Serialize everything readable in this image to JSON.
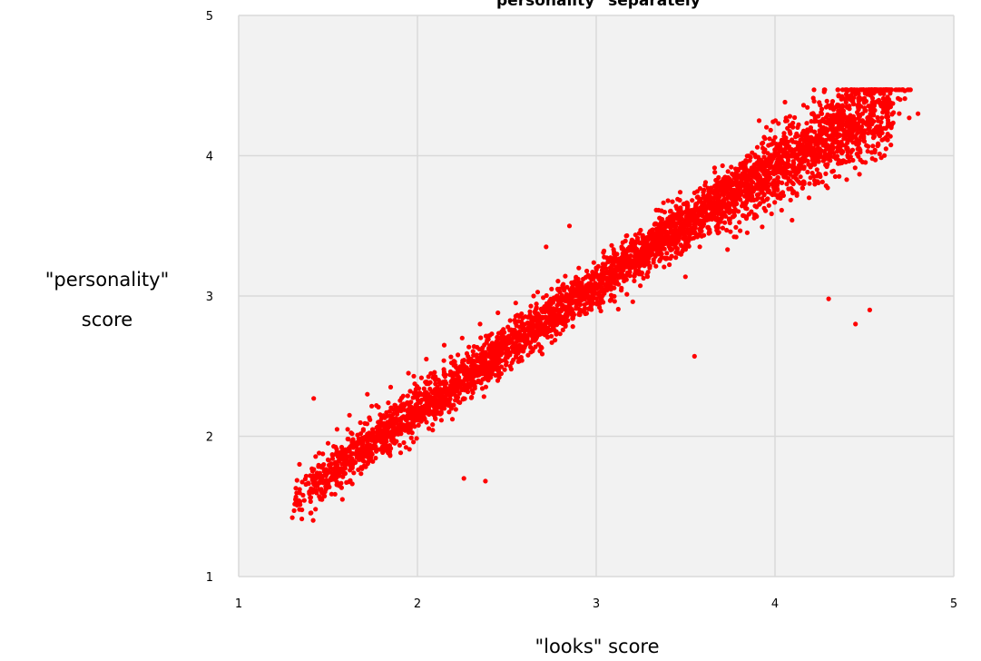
{
  "chart_data": {
    "type": "scatter",
    "title": "\"personality\" separately",
    "xlabel": "\"looks\" score",
    "ylabel": [
      "\"personality\"",
      "score"
    ],
    "xlim": [
      1,
      5
    ],
    "ylim": [
      1,
      5
    ],
    "xticks": [
      "1",
      "2",
      "3",
      "4",
      "5"
    ],
    "yticks": [
      "1",
      "2",
      "3",
      "4",
      "5"
    ],
    "grid": true,
    "legend": "none",
    "plot_background": "#f2f2f2",
    "grid_color": "#d9d9d9",
    "point_color": "#ff0000",
    "series": [
      {
        "points_summary": "dense cloud of several thousand points along a rising diagonal band from about (1.3, 1.45) to about (4.8, 4.3)",
        "points": [
          [
            1.3,
            1.42
          ],
          [
            1.31,
            1.47
          ],
          [
            1.32,
            1.63
          ],
          [
            1.34,
            1.8
          ],
          [
            1.36,
            1.58
          ],
          [
            1.4,
            1.72
          ],
          [
            1.42,
            2.27
          ],
          [
            1.43,
            1.48
          ],
          [
            1.45,
            1.88
          ],
          [
            1.5,
            1.95
          ],
          [
            1.55,
            2.05
          ],
          [
            1.58,
            1.55
          ],
          [
            1.62,
            2.15
          ],
          [
            1.68,
            1.95
          ],
          [
            1.72,
            2.3
          ],
          [
            1.78,
            2.1
          ],
          [
            1.85,
            2.35
          ],
          [
            1.9,
            2.2
          ],
          [
            1.95,
            2.45
          ],
          [
            2.0,
            2.3
          ],
          [
            2.05,
            2.55
          ],
          [
            2.1,
            2.4
          ],
          [
            2.15,
            2.65
          ],
          [
            2.2,
            2.45
          ],
          [
            2.25,
            2.7
          ],
          [
            2.26,
            1.7
          ],
          [
            2.3,
            2.55
          ],
          [
            2.35,
            2.8
          ],
          [
            2.38,
            1.68
          ],
          [
            2.4,
            2.62
          ],
          [
            2.45,
            2.88
          ],
          [
            2.5,
            2.7
          ],
          [
            2.55,
            2.95
          ],
          [
            2.6,
            2.75
          ],
          [
            2.65,
            3.0
          ],
          [
            2.7,
            2.85
          ],
          [
            2.72,
            3.35
          ],
          [
            2.75,
            3.05
          ],
          [
            2.8,
            2.9
          ],
          [
            2.85,
            3.5
          ],
          [
            2.9,
            3.1
          ],
          [
            2.95,
            2.95
          ],
          [
            3.0,
            3.2
          ],
          [
            3.05,
            3.05
          ],
          [
            3.1,
            3.3
          ],
          [
            3.15,
            3.15
          ],
          [
            3.2,
            3.4
          ],
          [
            3.25,
            3.25
          ],
          [
            3.3,
            3.45
          ],
          [
            3.35,
            3.3
          ],
          [
            3.4,
            3.55
          ],
          [
            3.45,
            3.4
          ],
          [
            3.5,
            3.6
          ],
          [
            3.55,
            2.57
          ],
          [
            3.55,
            3.45
          ],
          [
            3.6,
            3.7
          ],
          [
            3.65,
            3.55
          ],
          [
            3.7,
            3.75
          ],
          [
            3.75,
            3.6
          ],
          [
            3.8,
            3.85
          ],
          [
            3.85,
            3.7
          ],
          [
            3.9,
            3.95
          ],
          [
            3.95,
            3.8
          ],
          [
            4.0,
            4.0
          ],
          [
            4.05,
            3.85
          ],
          [
            4.1,
            4.1
          ],
          [
            4.15,
            3.95
          ],
          [
            4.2,
            4.2
          ],
          [
            4.25,
            4.05
          ],
          [
            4.3,
            2.98
          ],
          [
            4.3,
            4.25
          ],
          [
            4.35,
            4.1
          ],
          [
            4.4,
            4.35
          ],
          [
            4.45,
            2.8
          ],
          [
            4.45,
            4.2
          ],
          [
            4.5,
            4.4
          ],
          [
            4.53,
            2.9
          ],
          [
            4.55,
            4.3
          ],
          [
            4.6,
            4.45
          ],
          [
            4.65,
            4.2
          ],
          [
            4.7,
            4.4
          ],
          [
            4.75,
            4.47
          ],
          [
            4.8,
            4.3
          ]
        ]
      }
    ]
  }
}
